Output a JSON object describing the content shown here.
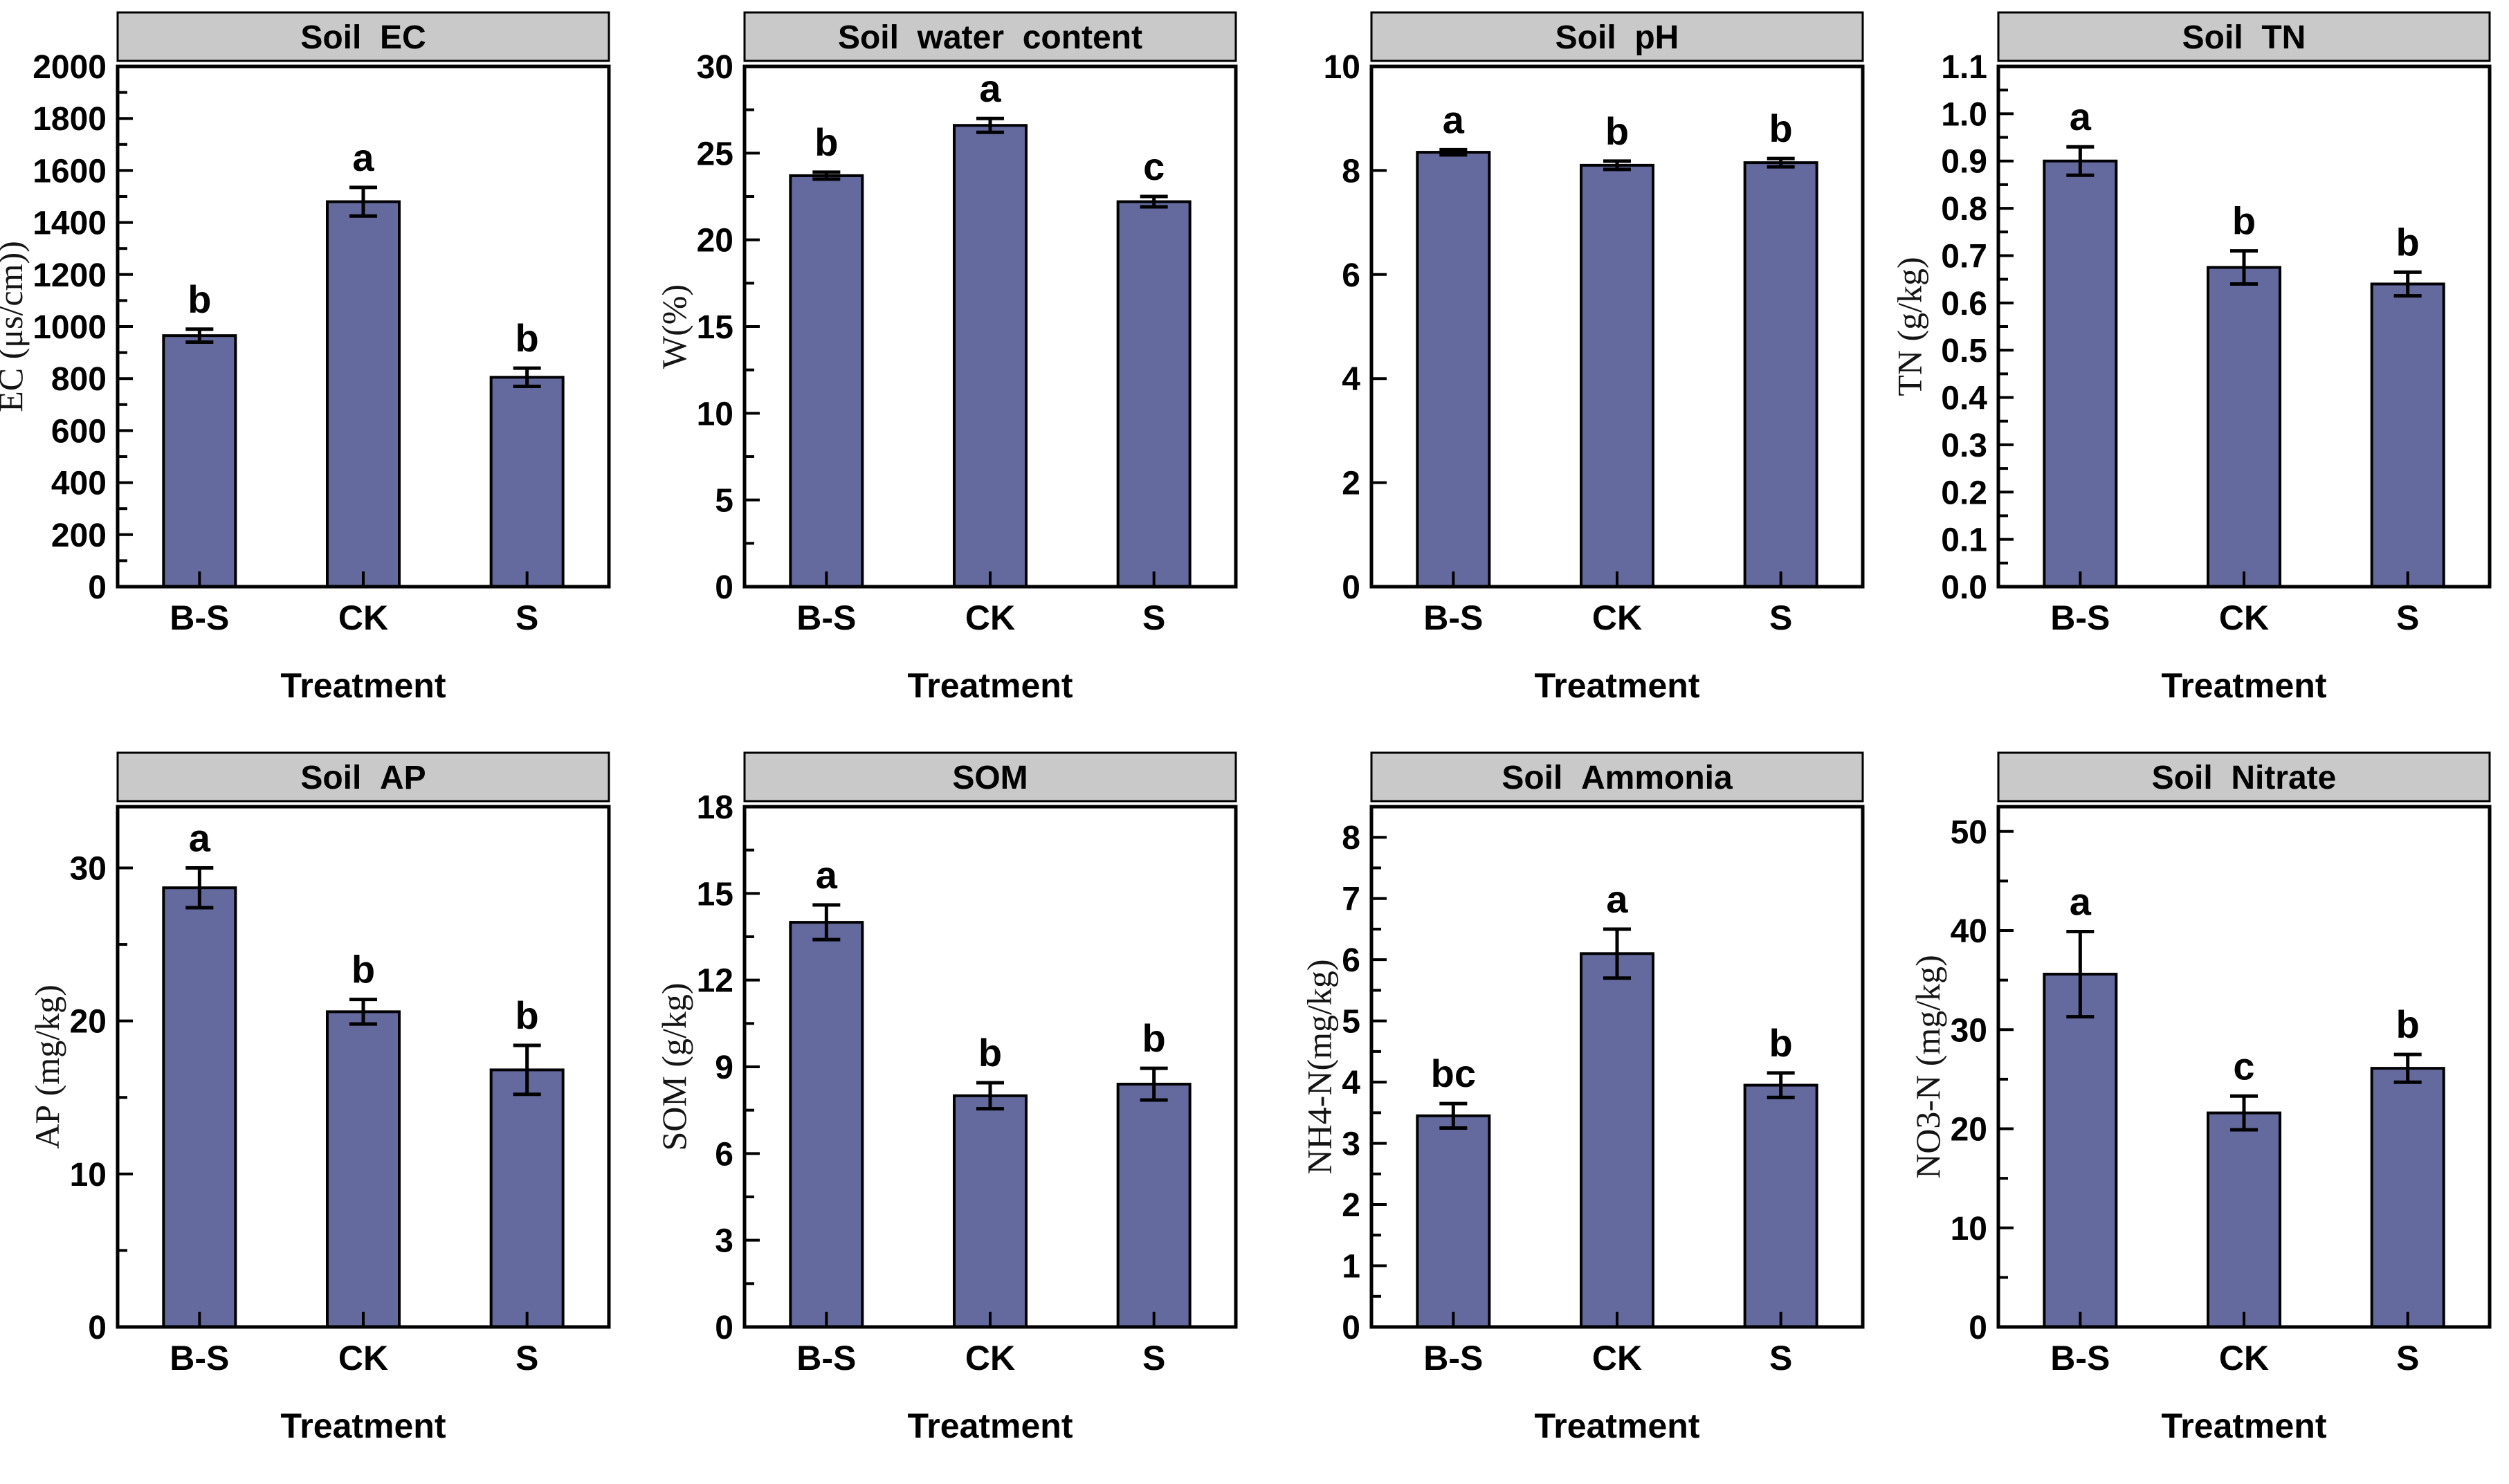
{
  "figure": {
    "bar_color": "#646a9e",
    "bar_border_color": "#000000",
    "header_bg": "#c9c9c9",
    "axis_color": "#000000",
    "background": "#ffffff",
    "xlabel": "Treatment",
    "categories": [
      "B-S",
      "CK",
      "S"
    ]
  },
  "chart_data": [
    {
      "type": "bar",
      "title": "Soil  EC",
      "ylabel": "EC (μs/cm))",
      "xlabel": "Treatment",
      "categories": [
        "B-S",
        "CK",
        "S"
      ],
      "values": [
        965,
        1480,
        805
      ],
      "errors": [
        25,
        55,
        35
      ],
      "letters": [
        "b",
        "a",
        "b"
      ],
      "ylim": [
        0,
        2000
      ],
      "ytick_step": 200,
      "minor_step": 100,
      "tick_decimals": 0
    },
    {
      "type": "bar",
      "title": "Soil  water  content",
      "ylabel": "W(%)",
      "xlabel": "Treatment",
      "categories": [
        "B-S",
        "CK",
        "S"
      ],
      "values": [
        23.7,
        26.6,
        22.2
      ],
      "errors": [
        0.2,
        0.4,
        0.3
      ],
      "letters": [
        "b",
        "a",
        "c"
      ],
      "ylim": [
        0,
        30
      ],
      "ytick_step": 5,
      "minor_step": 2.5,
      "tick_decimals": 0
    },
    {
      "type": "bar",
      "title": "Soil  pH",
      "ylabel": "",
      "xlabel": "Treatment",
      "categories": [
        "B-S",
        "CK",
        "S"
      ],
      "values": [
        8.35,
        8.1,
        8.15
      ],
      "errors": [
        0.05,
        0.08,
        0.08
      ],
      "letters": [
        "a",
        "b",
        "b"
      ],
      "ylim": [
        0,
        10
      ],
      "ytick_step": 2,
      "minor_step": null,
      "tick_decimals": 0
    },
    {
      "type": "bar",
      "title": "Soil  TN",
      "ylabel": "TN (g/kg)",
      "xlabel": "Treatment",
      "categories": [
        "B-S",
        "CK",
        "S"
      ],
      "values": [
        0.9,
        0.675,
        0.64
      ],
      "errors": [
        0.03,
        0.035,
        0.025
      ],
      "letters": [
        "a",
        "b",
        "b"
      ],
      "ylim": [
        0,
        1.1
      ],
      "ytick_step": 0.1,
      "minor_step": 0.05,
      "tick_decimals": 1
    },
    {
      "type": "bar",
      "title": "Soil  AP",
      "ylabel": "AP (mg/kg)",
      "xlabel": "Treatment",
      "categories": [
        "B-S",
        "CK",
        "S"
      ],
      "values": [
        28.7,
        20.6,
        16.8
      ],
      "errors": [
        1.3,
        0.8,
        1.6
      ],
      "letters": [
        "a",
        "b",
        "b"
      ],
      "ylim": [
        0,
        34
      ],
      "ytick_step": 10,
      "minor_step": 5,
      "tick_decimals": 0
    },
    {
      "type": "bar",
      "title": "SOM",
      "ylabel": "SOM (g/kg)",
      "xlabel": "Treatment",
      "categories": [
        "B-S",
        "CK",
        "S"
      ],
      "values": [
        14.0,
        8.0,
        8.4
      ],
      "errors": [
        0.6,
        0.45,
        0.55
      ],
      "letters": [
        "a",
        "b",
        "b"
      ],
      "ylim": [
        0,
        18
      ],
      "ytick_step": 3,
      "minor_step": 1.5,
      "tick_decimals": 0
    },
    {
      "type": "bar",
      "title": "Soil  Ammonia",
      "ylabel": "NH4-N(mg/kg)",
      "xlabel": "Treatment",
      "categories": [
        "B-S",
        "CK",
        "S"
      ],
      "values": [
        3.45,
        6.1,
        3.95
      ],
      "errors": [
        0.2,
        0.4,
        0.2
      ],
      "letters": [
        "bc",
        "a",
        "b"
      ],
      "ylim": [
        0,
        8.5
      ],
      "ytick_step": 1,
      "minor_step": 0.5,
      "tick_decimals": 0
    },
    {
      "type": "bar",
      "title": "Soil  Nitrate",
      "ylabel": "NO3-N (mg/kg)",
      "xlabel": "Treatment",
      "categories": [
        "B-S",
        "CK",
        "S"
      ],
      "values": [
        35.6,
        21.6,
        26.1
      ],
      "errors": [
        4.3,
        1.7,
        1.4
      ],
      "letters": [
        "a",
        "c",
        "b"
      ],
      "ylim": [
        0,
        52.5
      ],
      "ytick_step": 10,
      "minor_step": 5,
      "tick_decimals": 0
    }
  ]
}
